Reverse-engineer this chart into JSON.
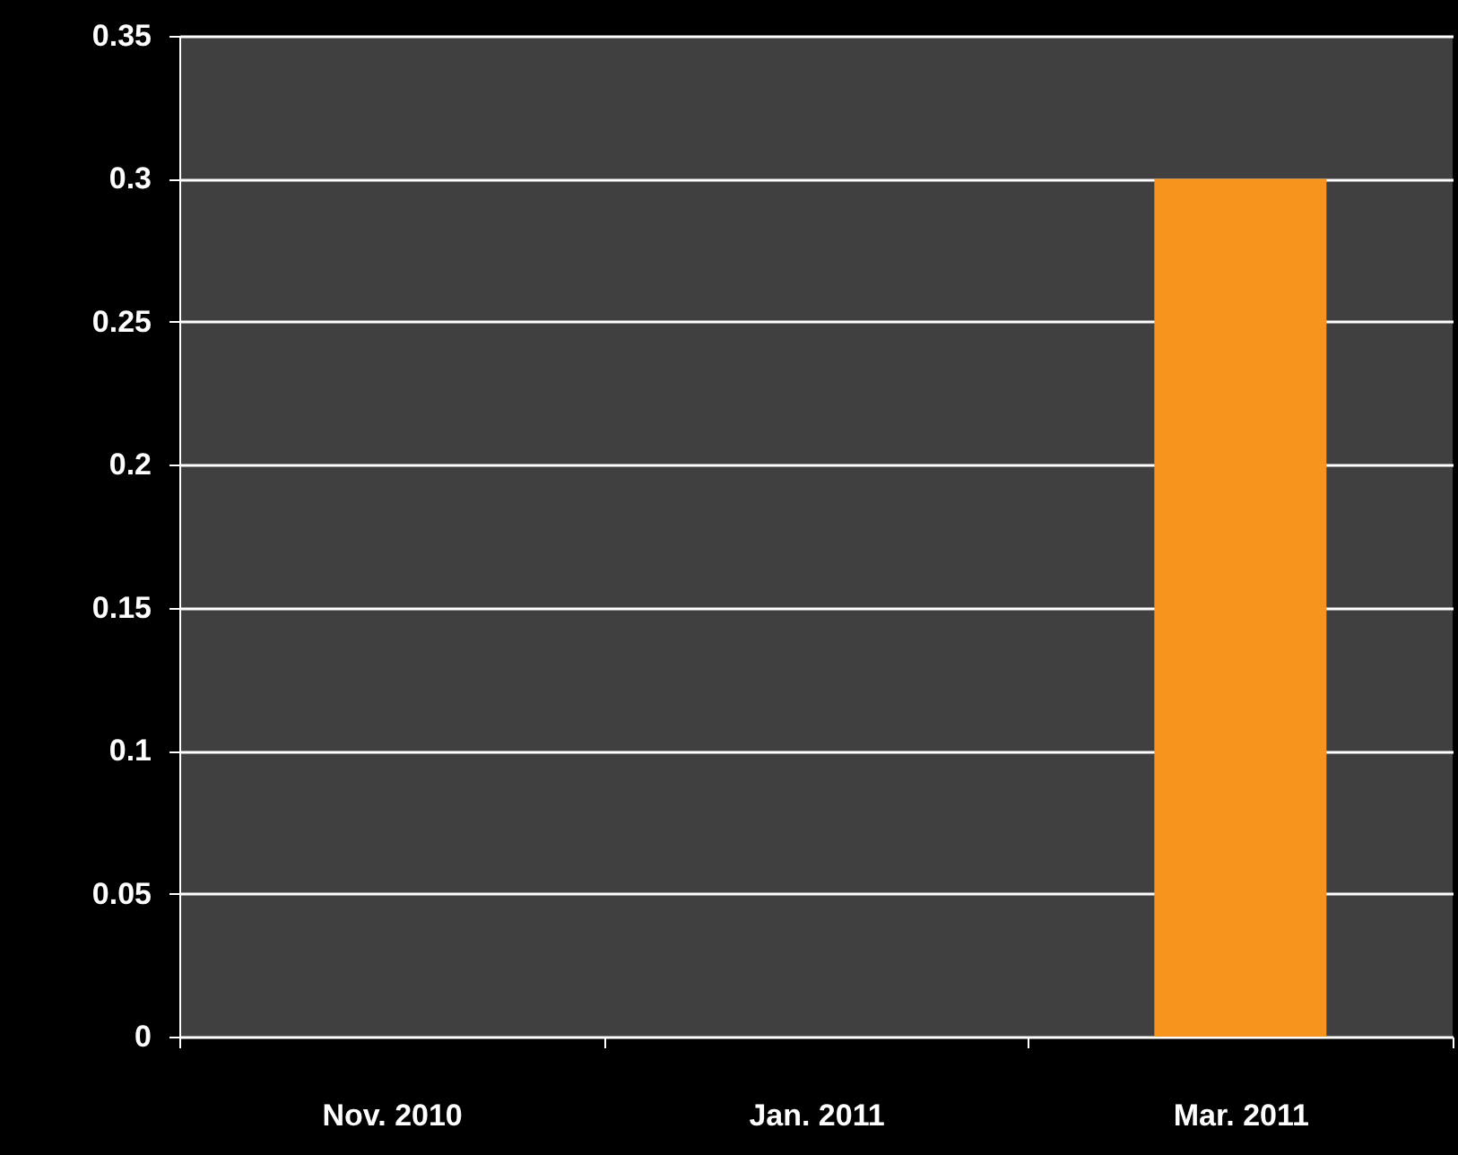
{
  "chart_data": {
    "type": "bar",
    "categories": [
      "Nov. 2010",
      "Jan. 2011",
      "Mar. 2011"
    ],
    "values": [
      0,
      0,
      0.3
    ],
    "color": "#f7941d",
    "ylim": [
      0,
      0.35
    ],
    "yticks": [
      0,
      0.05,
      0.1,
      0.15,
      0.2,
      0.25,
      0.3,
      0.35
    ],
    "grid": "y"
  }
}
